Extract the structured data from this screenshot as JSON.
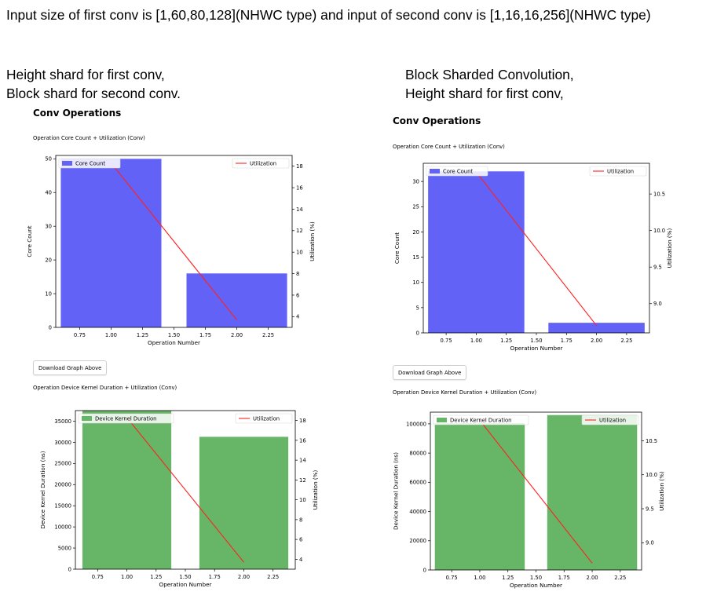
{
  "header": {
    "headline": "Input size of first conv is [1,60,80,128](NHWC type) and input of second conv is [1,16,16,256](NHWC type)"
  },
  "left": {
    "caption_line1": "Height shard for first conv,",
    "caption_line2": "Block shard for second conv.",
    "section_title": "Conv Operations",
    "chart1_title": "Operation Core Count + Utilization (Conv)",
    "download_label": "Download Graph Above",
    "chart2_title": "Operation Device Kernel Duration + Utilization (Conv)"
  },
  "right": {
    "caption_line1": "Block Sharded Convolution,",
    "caption_line2": "Height shard for first conv,",
    "section_title": "Conv Operations",
    "chart1_title": "Operation Core Count + Utilization (Conv)",
    "download_label": "Download Graph Above",
    "chart2_title": "Operation Device Kernel Duration + Utilization (Conv)"
  },
  "chart_data": [
    {
      "id": "left_core",
      "type": "bar",
      "x": [
        1,
        2
      ],
      "values": [
        50,
        16
      ],
      "bar_name": "Core Count",
      "bar_color": "#6262f7",
      "line_name": "Utilization",
      "line_color": "#ff2020",
      "line_values": [
        18.3,
        3.7
      ],
      "xlabel": "Operation Number",
      "ylabel": "Core Count",
      "y2label": "Utilization (%)",
      "xlim": [
        0.56,
        2.44
      ],
      "ylim": [
        0,
        51
      ],
      "y2lim": [
        3.0,
        19.0
      ],
      "xticks": [
        0.75,
        1.0,
        1.25,
        1.5,
        1.75,
        2.0,
        2.25
      ],
      "xtick_labels": [
        "0.75",
        "1.00",
        "1.25",
        "1.50",
        "1.75",
        "2.00",
        "2.25"
      ],
      "yticks": [
        0,
        10,
        20,
        30,
        40,
        50
      ],
      "ytick_labels": [
        "0",
        "10",
        "20",
        "30",
        "40",
        "50"
      ],
      "y2ticks": [
        4,
        6,
        8,
        10,
        12,
        14,
        16,
        18
      ],
      "y2tick_labels": [
        "4",
        "6",
        "8",
        "10",
        "12",
        "14",
        "16",
        "18"
      ]
    },
    {
      "id": "left_duration",
      "type": "bar",
      "x": [
        1,
        2
      ],
      "values": [
        37500,
        31300
      ],
      "bar_name": "Device Kernel Duration",
      "bar_color": "#67b567",
      "line_name": "Utilization",
      "line_color": "#ff2020",
      "line_values": [
        18.3,
        3.7
      ],
      "xlabel": "Operation Number",
      "ylabel": "Device Kernel Duration (ns)",
      "y2label": "Utilization (%)",
      "xlim": [
        0.56,
        2.44
      ],
      "ylim": [
        0,
        37500
      ],
      "y2lim": [
        3.0,
        19.0
      ],
      "xticks": [
        0.75,
        1.0,
        1.25,
        1.5,
        1.75,
        2.0,
        2.25
      ],
      "xtick_labels": [
        "0.75",
        "1.00",
        "1.25",
        "1.50",
        "1.75",
        "2.00",
        "2.25"
      ],
      "yticks": [
        0,
        5000,
        10000,
        15000,
        20000,
        25000,
        30000,
        35000
      ],
      "ytick_labels": [
        "0",
        "5000",
        "10000",
        "15000",
        "20000",
        "25000",
        "30000",
        "35000"
      ],
      "y2ticks": [
        4,
        6,
        8,
        10,
        12,
        14,
        16,
        18
      ],
      "y2tick_labels": [
        "4",
        "6",
        "8",
        "10",
        "12",
        "14",
        "16",
        "18"
      ]
    },
    {
      "id": "right_core",
      "type": "bar",
      "x": [
        1,
        2
      ],
      "values": [
        32,
        2
      ],
      "bar_name": "Core Count",
      "bar_color": "#6262f7",
      "line_name": "Utilization",
      "line_color": "#ff2020",
      "line_values": [
        10.8,
        8.7
      ],
      "xlabel": "Operation Number",
      "ylabel": "Core Count",
      "y2label": "Utilization (%)",
      "xlim": [
        0.56,
        2.44
      ],
      "ylim": [
        0,
        33.6
      ],
      "y2lim": [
        8.6,
        10.92
      ],
      "xticks": [
        0.75,
        1.0,
        1.25,
        1.5,
        1.75,
        2.0,
        2.25
      ],
      "xtick_labels": [
        "0.75",
        "1.00",
        "1.25",
        "1.50",
        "1.75",
        "2.00",
        "2.25"
      ],
      "yticks": [
        0,
        5,
        10,
        15,
        20,
        25,
        30
      ],
      "ytick_labels": [
        "0",
        "5",
        "10",
        "15",
        "20",
        "25",
        "30"
      ],
      "y2ticks": [
        9.0,
        9.5,
        10.0,
        10.5
      ],
      "y2tick_labels": [
        "9.0",
        "9.5",
        "10.0",
        "10.5"
      ]
    },
    {
      "id": "right_duration",
      "type": "bar",
      "x": [
        1,
        2
      ],
      "values": [
        100500,
        106000
      ],
      "bar_name": "Device Kernel Duration",
      "bar_color": "#67b567",
      "line_name": "Utilization",
      "line_color": "#ff2020",
      "line_values": [
        10.8,
        8.7
      ],
      "xlabel": "Operation Number",
      "ylabel": "Device Kernel Duration (ns)",
      "y2label": "Utilization (%)",
      "xlim": [
        0.56,
        2.44
      ],
      "ylim": [
        0,
        108000
      ],
      "y2lim": [
        8.6,
        10.92
      ],
      "xticks": [
        0.75,
        1.0,
        1.25,
        1.5,
        1.75,
        2.0,
        2.25
      ],
      "xtick_labels": [
        "0.75",
        "1.00",
        "1.25",
        "1.50",
        "1.75",
        "2.00",
        "2.25"
      ],
      "yticks": [
        0,
        20000,
        40000,
        60000,
        80000,
        100000
      ],
      "ytick_labels": [
        "0",
        "20000",
        "40000",
        "60000",
        "80000",
        "100000"
      ],
      "y2ticks": [
        9.0,
        9.5,
        10.0,
        10.5
      ],
      "y2tick_labels": [
        "9.0",
        "9.5",
        "10.0",
        "10.5"
      ]
    }
  ]
}
